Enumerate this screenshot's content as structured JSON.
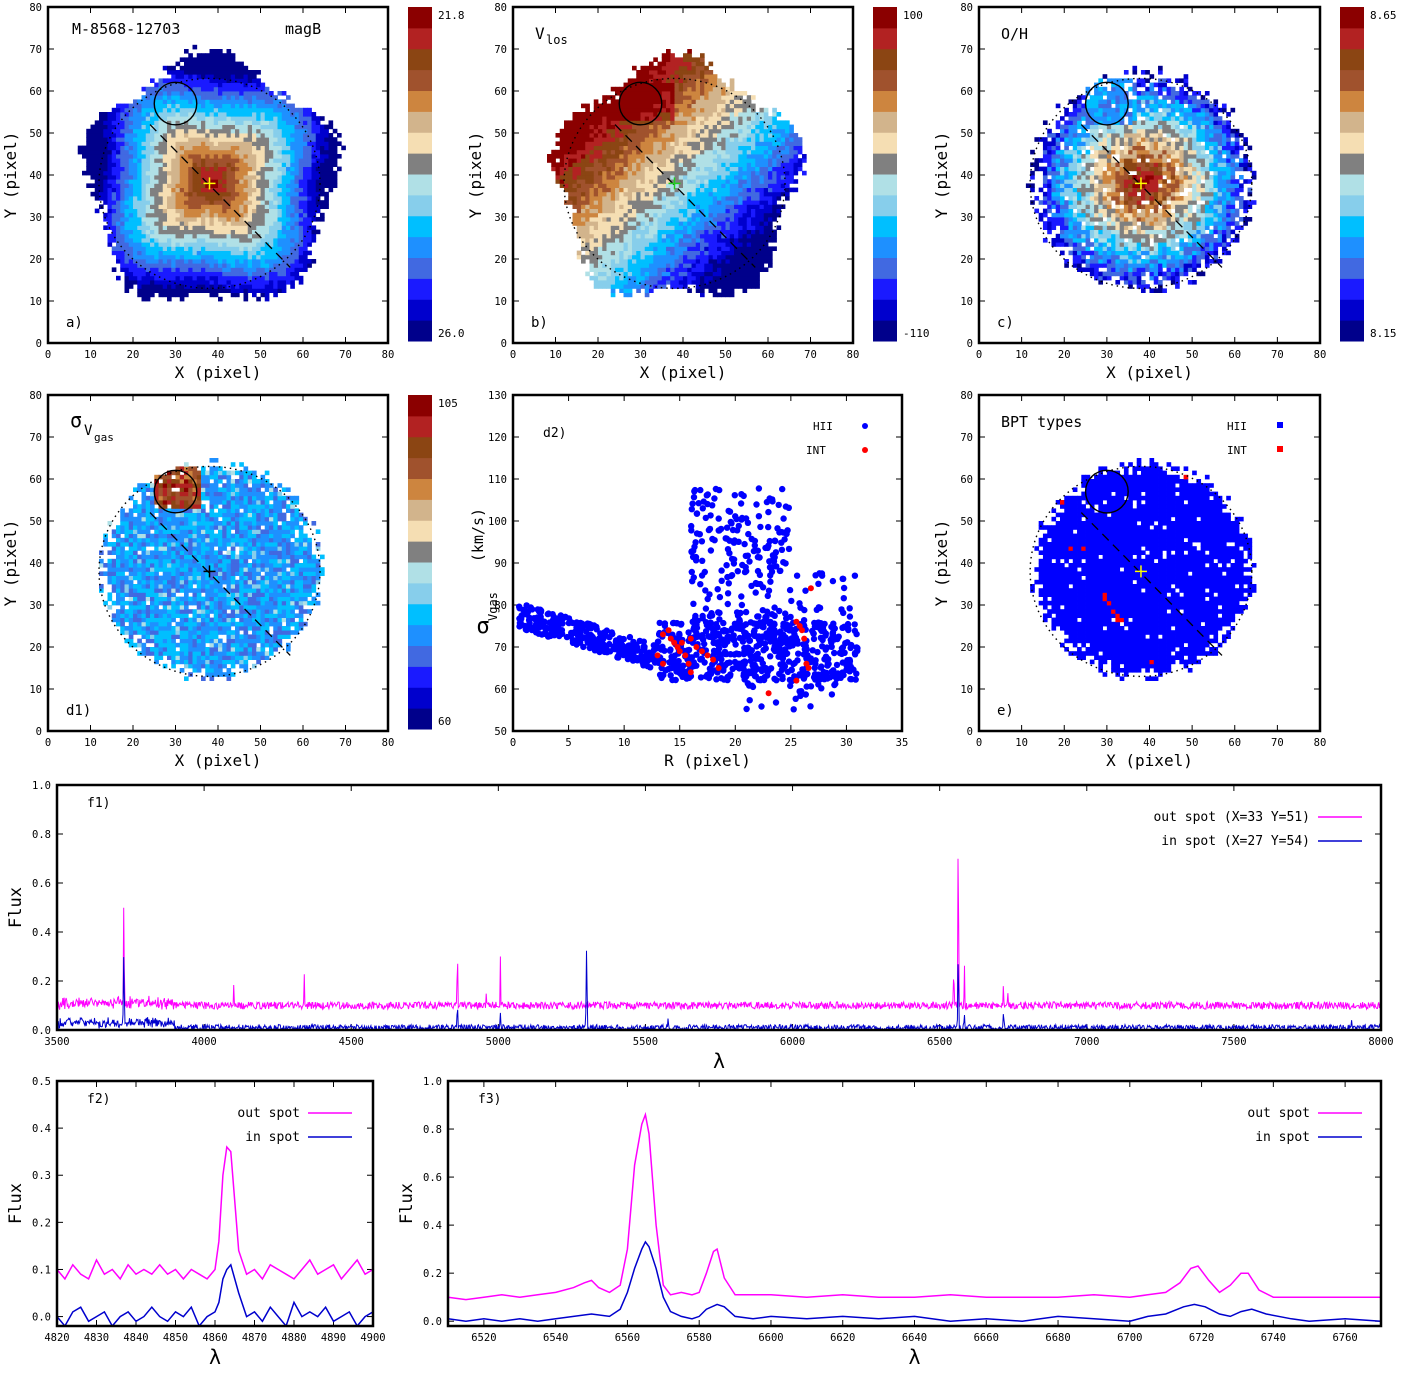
{
  "colors": {
    "ramp": [
      "#00008b",
      "#0000cd",
      "#1a1aff",
      "#4169e1",
      "#1e90ff",
      "#00bfff",
      "#87ceeb",
      "#b0e0e6",
      "#808080",
      "#f5deb3",
      "#d2b48c",
      "#cd853f",
      "#a0522d",
      "#8b4513",
      "#b22222",
      "#8b0000"
    ],
    "hii": "#0000ff",
    "int": "#ff0000",
    "out_spot": "#ff00ff",
    "in_spot": "#0000cd",
    "center_cross_a": "#ffff00",
    "center_cross_b": "#22cc22"
  },
  "map_panels": [
    {
      "key": "a",
      "label": "a)",
      "title": "M-8568-12703",
      "subtitle": "magB",
      "colorbar": {
        "top": "21.8",
        "bottom": "26.0"
      },
      "field": "mag",
      "xlabel": "X  (pixel)",
      "ylabel": "Y  (pixel)"
    },
    {
      "key": "b",
      "label": "b)",
      "title": "V",
      "title_sub": "los",
      "colorbar": {
        "top": "100",
        "bottom": "-110"
      },
      "field": "vel",
      "xlabel": "X  (pixel)",
      "ylabel": "Y  (pixel)"
    },
    {
      "key": "c",
      "label": "c)",
      "title": "O/H",
      "colorbar": {
        "top": "8.65",
        "bottom": "8.15"
      },
      "field": "oh",
      "xlabel": "X  (pixel)",
      "ylabel": "Y  (pixel)"
    },
    {
      "key": "d1",
      "label": "d1)",
      "title": "σ",
      "title_sub": "V",
      "title_subsub": "gas",
      "colorbar": {
        "top": "105",
        "bottom": "60"
      },
      "field": "sig",
      "xlabel": "X  (pixel)",
      "ylabel": "Y  (pixel)"
    },
    {
      "key": "e",
      "label": "e)",
      "title": "BPT types",
      "legend": [
        "HII",
        "INT"
      ],
      "field": "bpt",
      "xlabel": "X  (pixel)",
      "ylabel": "Y  (pixel)"
    }
  ],
  "map_axes": {
    "xlim": [
      0,
      80
    ],
    "ylim": [
      0,
      80
    ],
    "xticks": [
      0,
      10,
      20,
      30,
      40,
      50,
      60,
      70,
      80
    ],
    "yticks": [
      0,
      10,
      20,
      30,
      40,
      50,
      60,
      70,
      80
    ]
  },
  "overlay": {
    "center": [
      38,
      38
    ],
    "spot": {
      "x": 30,
      "y": 57,
      "r": 5
    },
    "ellipse": {
      "cx": 38,
      "cy": 38,
      "rx": 26,
      "ry": 25
    },
    "slit": [
      [
        24,
        52
      ],
      [
        57,
        18
      ]
    ]
  },
  "chart_data": [
    {
      "type": "scatter",
      "label": "d2)",
      "xlabel": "R  (pixel)",
      "ylabel": "σ",
      "ylabel_sub": "Vgas",
      "ylabel_unit": "(km/s)",
      "xlim": [
        0,
        35
      ],
      "ylim": [
        50,
        130
      ],
      "xticks": [
        0,
        5,
        10,
        15,
        20,
        25,
        30,
        35
      ],
      "yticks": [
        50,
        60,
        70,
        80,
        90,
        100,
        110,
        120,
        130
      ],
      "series": [
        {
          "name": "HII",
          "color": "#0000ff",
          "clusters": [
            {
              "x": [
                0.5,
                13
              ],
              "y": [
                66,
                80
              ],
              "n": 260
            },
            {
              "x": [
                13,
                31
              ],
              "y": [
                62,
                76
              ],
              "n": 520
            },
            {
              "x": [
                16,
                25
              ],
              "y": [
                72,
                108
              ],
              "n": 260
            },
            {
              "x": [
                21,
                30
              ],
              "y": [
                55,
                66
              ],
              "n": 40
            },
            {
              "x": [
                25,
                31
              ],
              "y": [
                74,
                88
              ],
              "n": 25
            }
          ]
        },
        {
          "name": "INT",
          "color": "#ff0000",
          "points": [
            [
              13.5,
              73
            ],
            [
              14,
              74
            ],
            [
              14.2,
              72
            ],
            [
              14.5,
              71
            ],
            [
              14.8,
              70
            ],
            [
              15,
              69
            ],
            [
              15.2,
              71
            ],
            [
              15.5,
              68
            ],
            [
              15.8,
              66
            ],
            [
              16,
              64
            ],
            [
              16.5,
              70
            ],
            [
              17,
              69
            ],
            [
              17.5,
              68
            ],
            [
              18,
              67
            ],
            [
              16,
              72
            ],
            [
              18.5,
              65
            ],
            [
              13,
              68
            ],
            [
              13.5,
              66
            ],
            [
              23,
              59
            ],
            [
              25.5,
              76
            ],
            [
              25.8,
              75
            ],
            [
              26,
              74
            ],
            [
              26.2,
              72
            ],
            [
              26.4,
              66
            ],
            [
              26.6,
              65
            ],
            [
              26.8,
              84
            ],
            [
              25.5,
              62
            ]
          ]
        }
      ]
    },
    {
      "type": "line",
      "label": "f1)",
      "xlabel": "λ",
      "ylabel": "Flux",
      "xlim": [
        3500,
        8000
      ],
      "ylim": [
        0,
        1.0
      ],
      "xticks": [
        3500,
        4000,
        4500,
        5000,
        5500,
        6000,
        6500,
        7000,
        7500,
        8000
      ],
      "yticks": [
        0.0,
        0.2,
        0.4,
        0.6,
        0.8,
        1.0
      ],
      "series": [
        {
          "name": "out spot  (X=33 Y=51)",
          "color": "#ff00ff",
          "baseline": 0.1,
          "noise": 0.015,
          "lines": [
            [
              3727,
              0.57
            ],
            [
              4101,
              0.21
            ],
            [
              4340,
              0.26
            ],
            [
              4861,
              0.36
            ],
            [
              4959,
              0.17
            ],
            [
              5007,
              0.3
            ],
            [
              6548,
              0.3
            ],
            [
              6563,
              0.86
            ],
            [
              6584,
              0.3
            ],
            [
              6717,
              0.22
            ],
            [
              6731,
              0.2
            ]
          ]
        },
        {
          "name": "in spot  (X=27 Y=54)",
          "color": "#0000cd",
          "baseline": 0.01,
          "noise": 0.012,
          "lines": [
            [
              3727,
              0.34
            ],
            [
              4861,
              0.11
            ],
            [
              5007,
              0.07
            ],
            [
              5300,
              0.37
            ],
            [
              5577,
              0.05
            ],
            [
              6563,
              0.33
            ],
            [
              6584,
              0.07
            ],
            [
              6717,
              0.08
            ],
            [
              7900,
              0.04
            ]
          ]
        }
      ]
    },
    {
      "type": "line",
      "label": "f2)",
      "xlabel": "λ",
      "ylabel": "Flux",
      "xlim": [
        4820,
        4900
      ],
      "ylim": [
        -0.02,
        0.5
      ],
      "xticks": [
        4820,
        4830,
        4840,
        4850,
        4860,
        4870,
        4880,
        4890,
        4900
      ],
      "yticks": [
        0.0,
        0.1,
        0.2,
        0.3,
        0.4,
        0.5
      ],
      "series": [
        {
          "name": "out spot",
          "color": "#ff00ff",
          "x": [
            4820,
            4822,
            4824,
            4826,
            4828,
            4830,
            4832,
            4834,
            4836,
            4838,
            4840,
            4842,
            4844,
            4846,
            4848,
            4850,
            4852,
            4854,
            4856,
            4858,
            4860,
            4861,
            4862,
            4863,
            4864,
            4866,
            4868,
            4870,
            4872,
            4874,
            4876,
            4878,
            4880,
            4882,
            4884,
            4886,
            4888,
            4890,
            4892,
            4894,
            4896,
            4898,
            4900
          ],
          "y": [
            0.1,
            0.08,
            0.11,
            0.09,
            0.08,
            0.12,
            0.09,
            0.1,
            0.08,
            0.11,
            0.09,
            0.1,
            0.09,
            0.11,
            0.09,
            0.1,
            0.08,
            0.1,
            0.09,
            0.08,
            0.1,
            0.16,
            0.3,
            0.36,
            0.35,
            0.14,
            0.09,
            0.1,
            0.08,
            0.11,
            0.1,
            0.09,
            0.08,
            0.1,
            0.12,
            0.09,
            0.1,
            0.11,
            0.08,
            0.1,
            0.12,
            0.09,
            0.1
          ]
        },
        {
          "name": "in spot",
          "color": "#0000cd",
          "x": [
            4820,
            4822,
            4824,
            4826,
            4828,
            4830,
            4832,
            4834,
            4836,
            4838,
            4840,
            4842,
            4844,
            4846,
            4848,
            4850,
            4852,
            4854,
            4856,
            4858,
            4860,
            4861,
            4862,
            4863,
            4864,
            4866,
            4868,
            4870,
            4872,
            4874,
            4876,
            4878,
            4880,
            4882,
            4884,
            4886,
            4888,
            4890,
            4892,
            4894,
            4896,
            4898,
            4900
          ],
          "y": [
            0.0,
            -0.02,
            0.01,
            0.02,
            -0.01,
            0.0,
            0.01,
            -0.02,
            0.0,
            0.01,
            -0.01,
            0.0,
            0.02,
            0.0,
            -0.01,
            0.01,
            0.0,
            0.02,
            -0.02,
            0.0,
            0.01,
            0.03,
            0.08,
            0.1,
            0.11,
            0.05,
            0.0,
            0.01,
            -0.01,
            0.02,
            0.0,
            -0.02,
            0.03,
            0.0,
            0.01,
            0.0,
            0.02,
            -0.01,
            0.0,
            0.01,
            -0.02,
            0.0,
            0.01
          ]
        }
      ]
    },
    {
      "type": "line",
      "label": "f3)",
      "xlabel": "λ",
      "ylabel": "Flux",
      "xlim": [
        6510,
        6770
      ],
      "ylim": [
        -0.02,
        1.0
      ],
      "xticks": [
        6520,
        6540,
        6560,
        6580,
        6600,
        6620,
        6640,
        6660,
        6680,
        6700,
        6720,
        6740,
        6760
      ],
      "yticks": [
        0.0,
        0.2,
        0.4,
        0.6,
        0.8,
        1.0
      ],
      "series": [
        {
          "name": "out spot",
          "color": "#ff00ff",
          "x": [
            6510,
            6515,
            6520,
            6525,
            6530,
            6535,
            6540,
            6545,
            6548,
            6550,
            6552,
            6555,
            6558,
            6560,
            6562,
            6564,
            6565,
            6566,
            6568,
            6570,
            6572,
            6575,
            6578,
            6580,
            6582,
            6584,
            6585,
            6587,
            6590,
            6595,
            6600,
            6610,
            6620,
            6630,
            6640,
            6650,
            6660,
            6670,
            6680,
            6690,
            6700,
            6705,
            6710,
            6714,
            6717,
            6719,
            6722,
            6725,
            6728,
            6731,
            6733,
            6736,
            6740,
            6750,
            6760,
            6770
          ],
          "y": [
            0.1,
            0.09,
            0.1,
            0.11,
            0.1,
            0.11,
            0.12,
            0.14,
            0.16,
            0.17,
            0.14,
            0.12,
            0.15,
            0.3,
            0.65,
            0.82,
            0.86,
            0.78,
            0.4,
            0.15,
            0.11,
            0.12,
            0.11,
            0.12,
            0.2,
            0.29,
            0.3,
            0.18,
            0.11,
            0.11,
            0.11,
            0.1,
            0.11,
            0.1,
            0.1,
            0.11,
            0.1,
            0.1,
            0.1,
            0.11,
            0.1,
            0.11,
            0.12,
            0.16,
            0.22,
            0.23,
            0.17,
            0.12,
            0.15,
            0.2,
            0.2,
            0.13,
            0.1,
            0.1,
            0.1,
            0.1
          ]
        },
        {
          "name": "in spot",
          "color": "#0000cd",
          "x": [
            6510,
            6515,
            6520,
            6525,
            6530,
            6535,
            6540,
            6545,
            6550,
            6555,
            6558,
            6560,
            6562,
            6564,
            6565,
            6566,
            6568,
            6570,
            6572,
            6575,
            6578,
            6580,
            6582,
            6585,
            6587,
            6590,
            6595,
            6600,
            6610,
            6620,
            6630,
            6640,
            6650,
            6660,
            6670,
            6680,
            6690,
            6700,
            6705,
            6710,
            6715,
            6718,
            6721,
            6725,
            6728,
            6731,
            6734,
            6738,
            6745,
            6750,
            6760,
            6770
          ],
          "y": [
            0.01,
            0.0,
            0.01,
            0.0,
            0.01,
            0.0,
            0.01,
            0.02,
            0.03,
            0.02,
            0.05,
            0.12,
            0.22,
            0.3,
            0.33,
            0.31,
            0.22,
            0.1,
            0.04,
            0.02,
            0.01,
            0.02,
            0.05,
            0.07,
            0.06,
            0.02,
            0.01,
            0.02,
            0.01,
            0.02,
            0.01,
            0.02,
            0.0,
            0.01,
            0.0,
            0.02,
            0.01,
            0.0,
            0.02,
            0.03,
            0.06,
            0.07,
            0.06,
            0.03,
            0.02,
            0.04,
            0.05,
            0.03,
            0.01,
            0.0,
            0.01,
            0.0
          ]
        }
      ]
    }
  ]
}
